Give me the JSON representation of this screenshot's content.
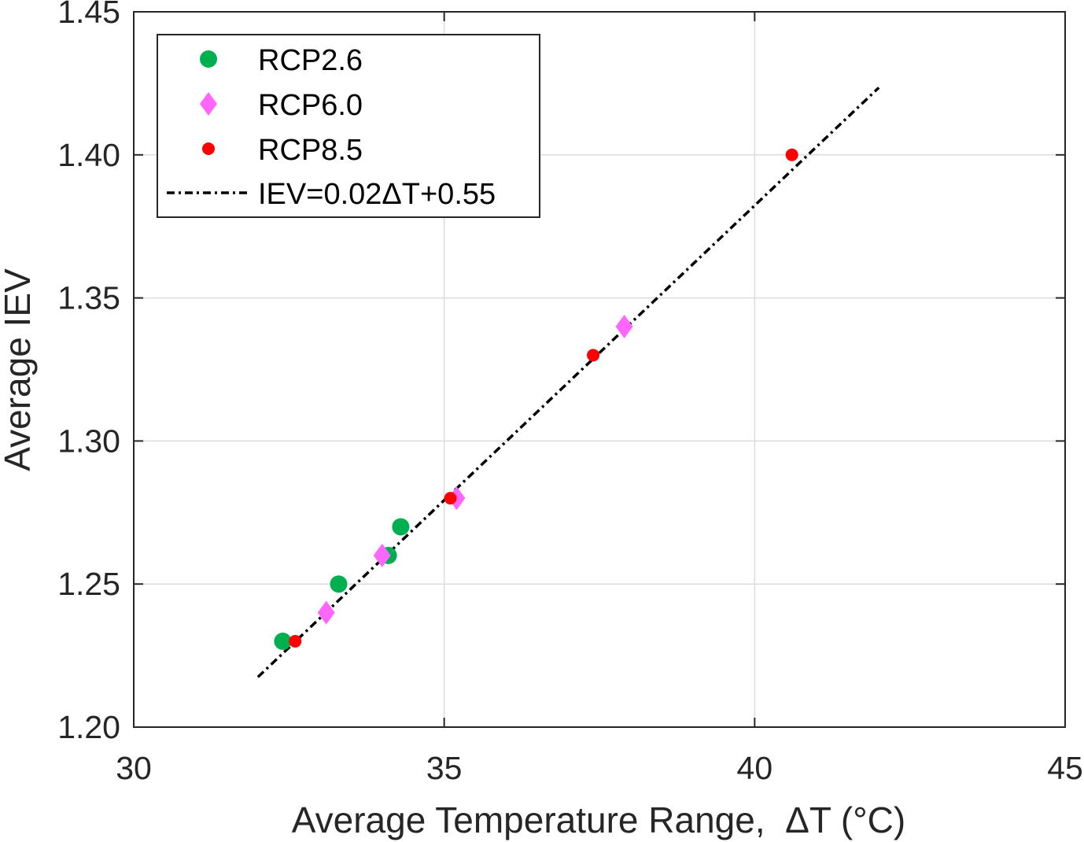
{
  "chart_data": {
    "type": "scatter",
    "title": "",
    "xlabel": "Average Temperature Range,  ΔT (°C)",
    "ylabel": "Average IEV",
    "xlim": [
      30,
      45
    ],
    "ylim": [
      1.2,
      1.45
    ],
    "xticks": [
      30,
      35,
      40,
      45
    ],
    "xtick_labels": [
      "30",
      "35",
      "40",
      "45"
    ],
    "yticks": [
      1.2,
      1.25,
      1.3,
      1.35,
      1.4,
      1.45
    ],
    "ytick_labels": [
      "1.20",
      "1.25",
      "1.30",
      "1.35",
      "1.40",
      "1.45"
    ],
    "grid": true,
    "legend_position": "top-left",
    "series": [
      {
        "name": "RCP2.6",
        "marker": "circle",
        "color": "#00b050",
        "points": [
          {
            "x": 32.4,
            "y": 1.23
          },
          {
            "x": 33.3,
            "y": 1.25
          },
          {
            "x": 34.1,
            "y": 1.26
          },
          {
            "x": 34.3,
            "y": 1.27
          }
        ]
      },
      {
        "name": "RCP6.0",
        "marker": "diamond",
        "color": "#ff66ff",
        "points": [
          {
            "x": 33.1,
            "y": 1.24
          },
          {
            "x": 34.0,
            "y": 1.26
          },
          {
            "x": 35.2,
            "y": 1.28
          },
          {
            "x": 37.9,
            "y": 1.34
          }
        ]
      },
      {
        "name": "RCP8.5",
        "marker": "dot",
        "color": "#ff0000",
        "points": [
          {
            "x": 32.6,
            "y": 1.23
          },
          {
            "x": 35.1,
            "y": 1.28
          },
          {
            "x": 37.4,
            "y": 1.33
          },
          {
            "x": 40.6,
            "y": 1.4
          }
        ]
      }
    ],
    "fit_line": {
      "name": "IEV=0.02ΔT+0.55",
      "style": "dash-dot",
      "color": "#000000",
      "x": [
        32,
        42
      ],
      "y": [
        1.2175,
        1.4235
      ]
    }
  }
}
